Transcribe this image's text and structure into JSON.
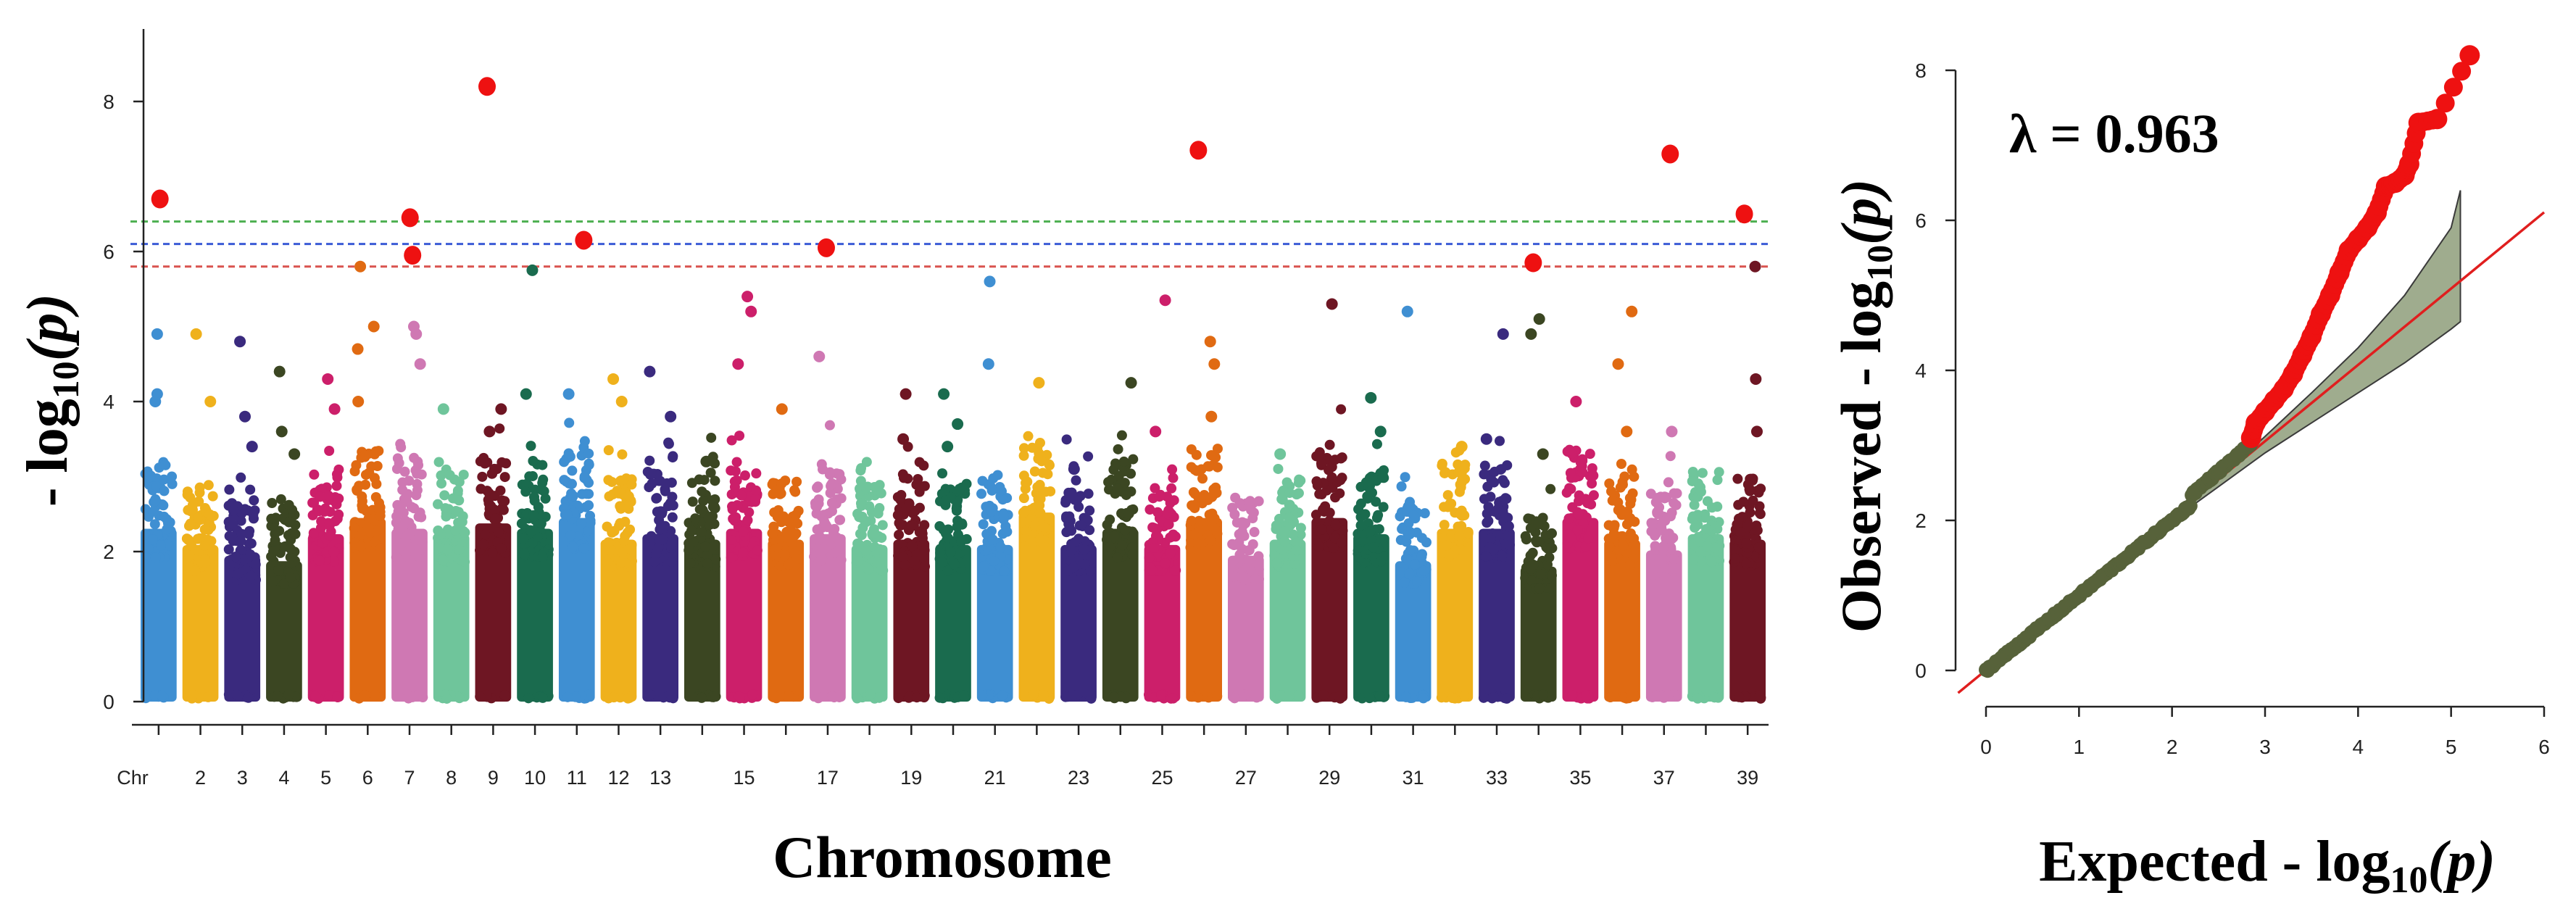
{
  "chart_data": [
    {
      "type": "scatter",
      "subtype": "manhattan",
      "title": "",
      "ylabel_prefix": "- log",
      "ylabel_sub": "10",
      "ylabel_p": "(p)",
      "xlabel": "Chromosome",
      "chr_axis_label": "Chr",
      "ylim": [
        0,
        9
      ],
      "yticks": [
        0,
        2,
        4,
        6,
        8
      ],
      "chromosome_labels": [
        "2",
        "3",
        "4",
        "5",
        "6",
        "7",
        "8",
        "9",
        "10",
        "11",
        "12",
        "13",
        "15",
        "17",
        "19",
        "21",
        "23",
        "25",
        "27",
        "29",
        "31",
        "33",
        "35",
        "37",
        "39"
      ],
      "chromosomes": [
        {
          "chr": 1,
          "color": "#3f8fd2",
          "top_cluster": 3.2,
          "hits": [
            4.0,
            4.1,
            4.9
          ],
          "sig": [
            6.7
          ]
        },
        {
          "chr": 2,
          "color": "#efb11c",
          "top_cluster": 2.9,
          "hits": [
            4.0,
            4.9
          ],
          "sig": []
        },
        {
          "chr": 3,
          "color": "#3a2a7e",
          "top_cluster": 2.7,
          "hits": [
            3.4,
            3.8,
            4.8
          ],
          "sig": []
        },
        {
          "chr": 4,
          "color": "#3b4622",
          "top_cluster": 2.6,
          "hits": [
            3.3,
            3.6,
            4.4
          ],
          "sig": []
        },
        {
          "chr": 5,
          "color": "#cc1f6a",
          "top_cluster": 3.1,
          "hits": [
            3.9,
            4.3
          ],
          "sig": []
        },
        {
          "chr": 6,
          "color": "#e06a12",
          "top_cluster": 3.4,
          "hits": [
            4.0,
            4.7,
            5.0,
            5.8
          ],
          "sig": []
        },
        {
          "chr": 7,
          "color": "#cf78b3",
          "top_cluster": 3.2,
          "hits": [
            4.5,
            4.9,
            5.0
          ],
          "sig": [
            5.95,
            6.45
          ]
        },
        {
          "chr": 8,
          "color": "#6fc59b",
          "top_cluster": 3.1,
          "hits": [
            3.9
          ],
          "sig": []
        },
        {
          "chr": 9,
          "color": "#6e1623",
          "top_cluster": 3.3,
          "hits": [
            3.6,
            3.9
          ],
          "sig": [
            8.2
          ]
        },
        {
          "chr": 10,
          "color": "#1a6b4e",
          "top_cluster": 3.2,
          "hits": [
            4.1,
            5.75
          ],
          "sig": []
        },
        {
          "chr": 11,
          "color": "#3f8fd2",
          "top_cluster": 3.4,
          "hits": [
            4.1
          ],
          "sig": [
            6.15
          ]
        },
        {
          "chr": 12,
          "color": "#efb11c",
          "top_cluster": 3.0,
          "hits": [
            4.0,
            4.3
          ],
          "sig": []
        },
        {
          "chr": 13,
          "color": "#3a2a7e",
          "top_cluster": 3.1,
          "hits": [
            3.8,
            4.4
          ],
          "sig": []
        },
        {
          "chr": 14,
          "color": "#3b4622",
          "top_cluster": 3.0,
          "hits": [
            3.2
          ],
          "sig": []
        },
        {
          "chr": 15,
          "color": "#cc1f6a",
          "top_cluster": 3.2,
          "hits": [
            4.5,
            5.2,
            5.4
          ],
          "sig": []
        },
        {
          "chr": 16,
          "color": "#e06a12",
          "top_cluster": 3.0,
          "hits": [
            3.9
          ],
          "sig": []
        },
        {
          "chr": 17,
          "color": "#cf78b3",
          "top_cluster": 3.1,
          "hits": [
            4.6
          ],
          "sig": [
            6.05
          ]
        },
        {
          "chr": 18,
          "color": "#6fc59b",
          "top_cluster": 2.9,
          "hits": [],
          "sig": []
        },
        {
          "chr": 19,
          "color": "#6e1623",
          "top_cluster": 3.0,
          "hits": [
            3.5,
            4.1
          ],
          "sig": []
        },
        {
          "chr": 20,
          "color": "#1a6b4e",
          "top_cluster": 2.9,
          "hits": [
            3.4,
            3.7,
            4.1
          ],
          "sig": []
        },
        {
          "chr": 21,
          "color": "#3f8fd2",
          "top_cluster": 2.9,
          "hits": [
            4.5,
            5.6
          ],
          "sig": []
        },
        {
          "chr": 22,
          "color": "#efb11c",
          "top_cluster": 3.5,
          "hits": [
            4.25
          ],
          "sig": []
        },
        {
          "chr": 23,
          "color": "#3a2a7e",
          "top_cluster": 2.9,
          "hits": [
            3.1
          ],
          "sig": []
        },
        {
          "chr": 24,
          "color": "#3b4622",
          "top_cluster": 3.2,
          "hits": [
            4.25
          ],
          "sig": []
        },
        {
          "chr": 25,
          "color": "#cc1f6a",
          "top_cluster": 2.9,
          "hits": [
            3.6,
            5.35
          ],
          "sig": []
        },
        {
          "chr": 26,
          "color": "#e06a12",
          "top_cluster": 3.4,
          "hits": [
            3.8,
            4.5,
            4.8
          ],
          "sig": [
            7.35
          ]
        },
        {
          "chr": 27,
          "color": "#cf78b3",
          "top_cluster": 2.7,
          "hits": [],
          "sig": []
        },
        {
          "chr": 28,
          "color": "#6fc59b",
          "top_cluster": 3.0,
          "hits": [
            3.3
          ],
          "sig": []
        },
        {
          "chr": 29,
          "color": "#6e1623",
          "top_cluster": 3.4,
          "hits": [
            5.3
          ],
          "sig": []
        },
        {
          "chr": 30,
          "color": "#1a6b4e",
          "top_cluster": 3.1,
          "hits": [
            3.6,
            4.05
          ],
          "sig": []
        },
        {
          "chr": 31,
          "color": "#3f8fd2",
          "top_cluster": 2.6,
          "hits": [
            5.2
          ],
          "sig": []
        },
        {
          "chr": 32,
          "color": "#efb11c",
          "top_cluster": 3.2,
          "hits": [
            3.4
          ],
          "sig": []
        },
        {
          "chr": 33,
          "color": "#3a2a7e",
          "top_cluster": 3.2,
          "hits": [
            3.5,
            4.9
          ],
          "sig": []
        },
        {
          "chr": 34,
          "color": "#3b4622",
          "top_cluster": 2.5,
          "hits": [
            3.3,
            4.9,
            5.1
          ],
          "sig": [
            5.85
          ]
        },
        {
          "chr": 35,
          "color": "#cc1f6a",
          "top_cluster": 3.4,
          "hits": [
            4.0
          ],
          "sig": []
        },
        {
          "chr": 36,
          "color": "#e06a12",
          "top_cluster": 3.0,
          "hits": [
            3.6,
            4.5,
            5.2
          ],
          "sig": []
        },
        {
          "chr": 37,
          "color": "#cf78b3",
          "top_cluster": 2.8,
          "hits": [
            3.6
          ],
          "sig": [
            7.3
          ]
        },
        {
          "chr": 38,
          "color": "#6fc59b",
          "top_cluster": 3.1,
          "hits": [],
          "sig": []
        },
        {
          "chr": 39,
          "color": "#6e1623",
          "top_cluster": 3.0,
          "hits": [
            3.6,
            4.3,
            5.8
          ],
          "sig": [
            6.5
          ]
        }
      ],
      "threshold_lines": [
        {
          "value": 6.4,
          "color": "#4caf50"
        },
        {
          "value": 6.1,
          "color": "#3b5bd6"
        },
        {
          "value": 5.8,
          "color": "#d9534f"
        }
      ],
      "sig_color": "#ee1111"
    },
    {
      "type": "scatter",
      "subtype": "qq",
      "annotation": "λ = 0.963",
      "xlabel_prefix": "Expected - log",
      "xlabel_sub": "10",
      "xlabel_p": "(p)",
      "ylabel_prefix": "Observed - log",
      "ylabel_sub": "10",
      "ylabel_p": "(p)",
      "xlim": [
        0,
        6
      ],
      "ylim": [
        0,
        8.2
      ],
      "xticks": [
        0,
        1,
        2,
        3,
        4,
        5,
        6
      ],
      "yticks": [
        0,
        2,
        4,
        6,
        8
      ],
      "line": {
        "slope": 1.0,
        "intercept": 0,
        "color": "#e01e1e"
      },
      "confidence_band": {
        "color": "#8e9e7a",
        "x": [
          2.0,
          2.5,
          3.0,
          3.5,
          4.0,
          4.5,
          5.0,
          5.1
        ],
        "lower": [
          2.0,
          2.45,
          2.9,
          3.3,
          3.7,
          4.1,
          4.55,
          4.65
        ],
        "upper": [
          2.0,
          2.55,
          3.12,
          3.7,
          4.3,
          5.0,
          5.9,
          6.4
        ]
      },
      "observed_low_color": "#57623a",
      "observed_high_color": "#ee1111",
      "observed_high_points": [
        [
          2.85,
          3.1
        ],
        [
          2.9,
          3.3
        ],
        [
          3.0,
          3.45
        ],
        [
          3.1,
          3.6
        ],
        [
          3.2,
          3.75
        ],
        [
          3.3,
          3.95
        ],
        [
          3.4,
          4.2
        ],
        [
          3.5,
          4.45
        ],
        [
          3.6,
          4.75
        ],
        [
          3.7,
          5.0
        ],
        [
          3.8,
          5.3
        ],
        [
          3.9,
          5.6
        ],
        [
          4.0,
          5.75
        ],
        [
          4.1,
          5.9
        ],
        [
          4.2,
          6.1
        ],
        [
          4.3,
          6.45
        ],
        [
          4.4,
          6.5
        ],
        [
          4.5,
          6.6
        ],
        [
          4.55,
          6.75
        ],
        [
          4.65,
          7.3
        ],
        [
          4.85,
          7.35
        ],
        [
          5.2,
          8.2
        ]
      ]
    }
  ]
}
